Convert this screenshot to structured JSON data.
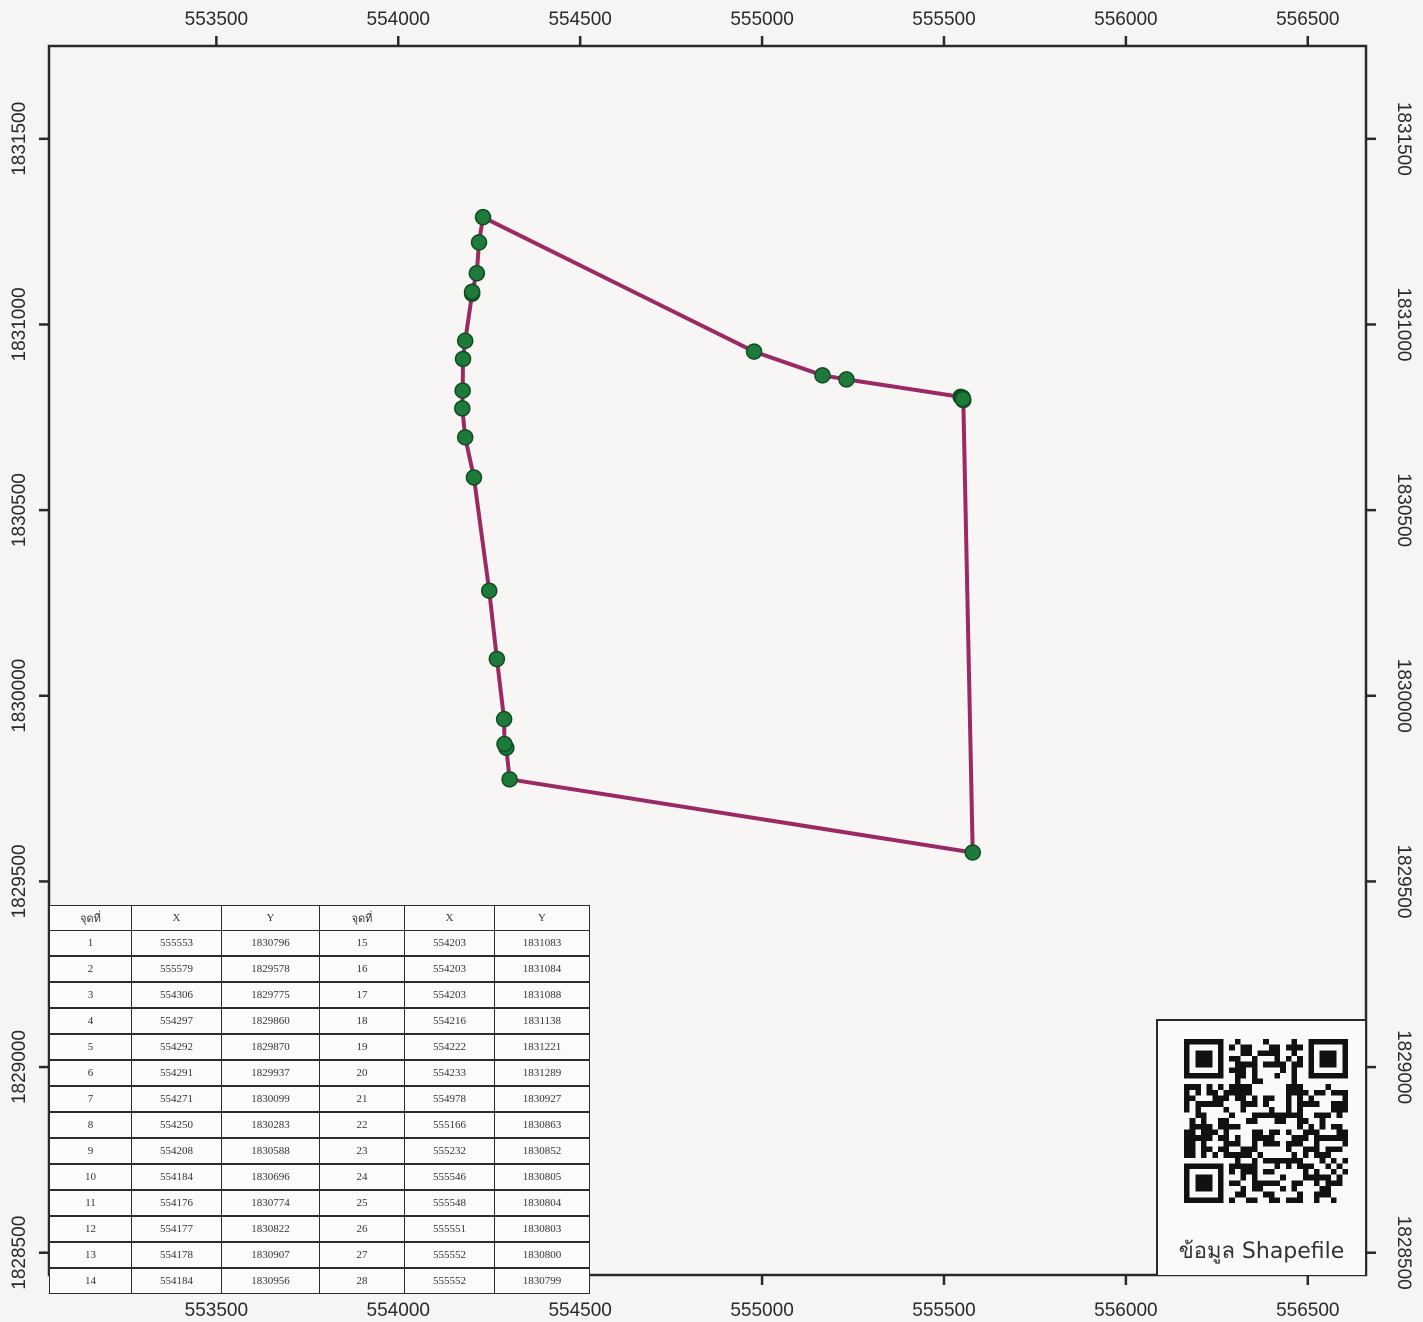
{
  "map": {
    "x_ticks": [
      "553500",
      "554000",
      "554500",
      "555000",
      "555500",
      "556000",
      "556500"
    ],
    "y_ticks": [
      "1831500",
      "1831000",
      "1830500",
      "1830000",
      "1829500",
      "1829000",
      "1828500"
    ],
    "x_range": [
      553040,
      556660
    ],
    "y_range": [
      1828440,
      1831750
    ],
    "boundary_color": "#9b2a64",
    "vertex_color": "#1d7a3a",
    "vertex_outline": "#0e4d22"
  },
  "table": {
    "headers": [
      "จุดที่",
      "X",
      "Y",
      "จุดที่",
      "X",
      "Y"
    ],
    "points": [
      {
        "n": "1",
        "x": "555553",
        "y": "1830796"
      },
      {
        "n": "2",
        "x": "555579",
        "y": "1829578"
      },
      {
        "n": "3",
        "x": "554306",
        "y": "1829775"
      },
      {
        "n": "4",
        "x": "554297",
        "y": "1829860"
      },
      {
        "n": "5",
        "x": "554292",
        "y": "1829870"
      },
      {
        "n": "6",
        "x": "554291",
        "y": "1829937"
      },
      {
        "n": "7",
        "x": "554271",
        "y": "1830099"
      },
      {
        "n": "8",
        "x": "554250",
        "y": "1830283"
      },
      {
        "n": "9",
        "x": "554208",
        "y": "1830588"
      },
      {
        "n": "10",
        "x": "554184",
        "y": "1830696"
      },
      {
        "n": "11",
        "x": "554176",
        "y": "1830774"
      },
      {
        "n": "12",
        "x": "554177",
        "y": "1830822"
      },
      {
        "n": "13",
        "x": "554178",
        "y": "1830907"
      },
      {
        "n": "14",
        "x": "554184",
        "y": "1830956"
      },
      {
        "n": "15",
        "x": "554203",
        "y": "1831083"
      },
      {
        "n": "16",
        "x": "554203",
        "y": "1831084"
      },
      {
        "n": "17",
        "x": "554203",
        "y": "1831088"
      },
      {
        "n": "18",
        "x": "554216",
        "y": "1831138"
      },
      {
        "n": "19",
        "x": "554222",
        "y": "1831221"
      },
      {
        "n": "20",
        "x": "554233",
        "y": "1831289"
      },
      {
        "n": "21",
        "x": "554978",
        "y": "1830927"
      },
      {
        "n": "22",
        "x": "555166",
        "y": "1830863"
      },
      {
        "n": "23",
        "x": "555232",
        "y": "1830852"
      },
      {
        "n": "24",
        "x": "555546",
        "y": "1830805"
      },
      {
        "n": "25",
        "x": "555548",
        "y": "1830804"
      },
      {
        "n": "26",
        "x": "555551",
        "y": "1830803"
      },
      {
        "n": "27",
        "x": "555552",
        "y": "1830800"
      },
      {
        "n": "28",
        "x": "555552",
        "y": "1830799"
      }
    ]
  },
  "qr": {
    "caption": "ข้อมูล Shapefile"
  }
}
